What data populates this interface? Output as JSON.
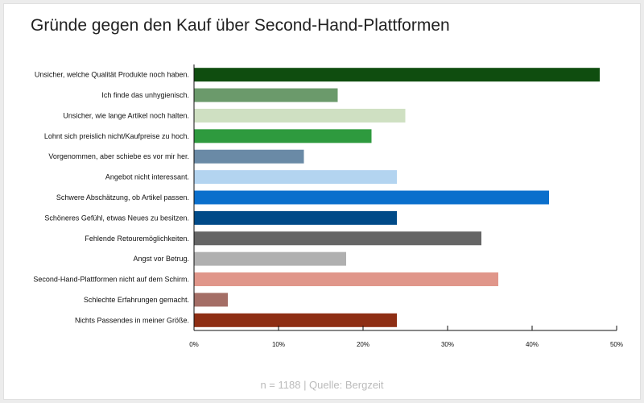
{
  "chart_data": {
    "type": "bar",
    "orientation": "horizontal",
    "title": "Gründe gegen den Kauf über Second-Hand-Plattformen",
    "categories": [
      "Unsicher, welche Qualität Produkte noch haben.",
      "Ich finde das unhygienisch.",
      "Unsicher, wie lange Artikel noch halten.",
      "Lohnt sich preislich nicht/Kaufpreise zu hoch.",
      "Vorgenommen, aber schiebe es vor mir her.",
      "Angebot nicht interessant.",
      "Schwere Abschätzung, ob Artikel passen.",
      "Schöneres Gefühl, etwas Neues zu besitzen.",
      "Fehlende Retouremöglichkeiten.",
      "Angst vor Betrug.",
      "Second-Hand-Plattformen nicht auf dem Schirm.",
      "Schlechte Erfahrungen gemacht.",
      "Nichts Passendes in meiner Größe."
    ],
    "values": [
      48,
      17,
      25,
      21,
      13,
      24,
      42,
      24,
      34,
      18,
      36,
      4,
      24
    ],
    "colors": [
      "#0f4d0f",
      "#6b9a6b",
      "#cfe0c2",
      "#2e9a3e",
      "#6a8aa6",
      "#b3d4f0",
      "#0a6fcc",
      "#004a88",
      "#656565",
      "#b0b0b0",
      "#e0968a",
      "#a46e66",
      "#8e2e14"
    ],
    "xlim": [
      0,
      50
    ],
    "xticks": [
      "0%",
      "10%",
      "20%",
      "30%",
      "40%",
      "50%"
    ],
    "grid": false,
    "xlabel": "",
    "ylabel": ""
  },
  "footer": "n = 1188 | Quelle: Bergzeit"
}
